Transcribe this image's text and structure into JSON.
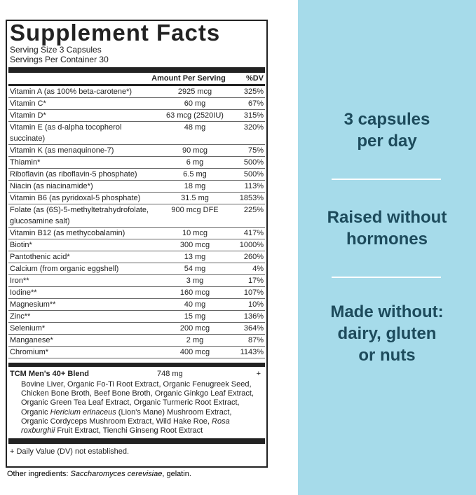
{
  "header": {
    "title": "Supplement Facts",
    "serving_size": "Serving Size 3 Capsules",
    "servings_per_container": "Servings Per Container 30"
  },
  "table": {
    "columns": [
      "Amount Per Serving",
      "%DV"
    ],
    "rows": [
      [
        "Vitamin A (as 100% beta-carotene*)",
        "2925 mcg",
        "325%"
      ],
      [
        "Vitamin C*",
        "60 mg",
        "67%"
      ],
      [
        "Vitamin D*",
        "63 mcg (2520IU)",
        "315%"
      ],
      [
        "Vitamin E (as d-alpha tocopherol succinate)",
        "48 mg",
        "320%"
      ],
      [
        "Vitamin K (as menaquinone-7)",
        "90 mcg",
        "75%"
      ],
      [
        "Thiamin*",
        "6 mg",
        "500%"
      ],
      [
        "Riboflavin (as riboflavin-5 phosphate)",
        "6.5 mg",
        "500%"
      ],
      [
        "Niacin (as niacinamide*)",
        "18 mg",
        "113%"
      ],
      [
        "Vitamin B6 (as pyridoxal-5 phosphate)",
        "31.5 mg",
        "1853%"
      ],
      [
        "Folate (as (6S)-5-methyltetrahydrofolate, glucosamine salt)",
        "900 mcg DFE",
        "225%"
      ],
      [
        "Vitamin B12 (as methycobalamin)",
        "10 mcg",
        "417%"
      ],
      [
        "Biotin*",
        "300 mcg",
        "1000%"
      ],
      [
        "Pantothenic acid*",
        "13 mg",
        "260%"
      ],
      [
        "Calcium (from organic eggshell)",
        "54 mg",
        "4%"
      ],
      [
        "Iron**",
        "3 mg",
        "17%"
      ],
      [
        "Iodine**",
        "160 mcg",
        "107%"
      ],
      [
        "Magnesium**",
        "40 mg",
        "10%"
      ],
      [
        "Zinc**",
        "15 mg",
        "136%"
      ],
      [
        "Selenium*",
        "200 mcg",
        "364%"
      ],
      [
        "Manganese*",
        "2 mg",
        "87%"
      ],
      [
        "Chromium*",
        "400 mcg",
        "1143%"
      ]
    ]
  },
  "blend": {
    "name": "TCM Men's 40+ Blend",
    "amount": "748 mg",
    "dv": "+",
    "description": [
      "Bovine Liver, Organic Fo-Ti Root Extract, Organic Fenugreek Seed, Chicken Bone Broth, Beef Bone Broth, Organic Ginkgo Leaf Extract, Organic Green Tea Leaf Extract, Organic Turmeric Root Extract, Organic ",
      "Hericium erinaceus",
      " (Lion's Mane) Mushroom Extract, Organic Cordyceps Mushroom Extract, Wild Hake Roe, ",
      "Rosa roxburghii",
      " Fruit Extract, Tienchi Ginseng Root Extract"
    ]
  },
  "footnote": "+ Daily Value (DV) not established.",
  "other_ingredients": [
    "Other ingredients: ",
    "Saccharomyces cerevisiae",
    ", gelatin."
  ],
  "sidebar": {
    "items": [
      [
        "3 capsules",
        "per day"
      ],
      [
        "Raised without",
        "hormones"
      ],
      [
        "Made without:",
        "dairy, gluten",
        "or nuts"
      ]
    ]
  }
}
